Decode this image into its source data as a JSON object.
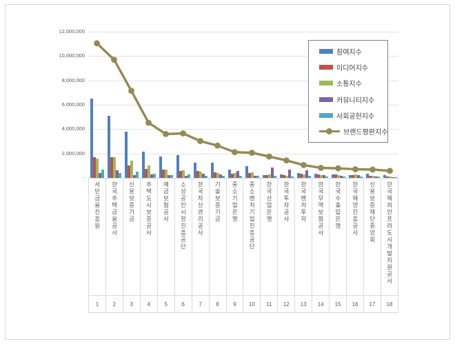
{
  "chart_data": {
    "type": "bar+line",
    "title": "",
    "legend_position": "inside-top-right",
    "grid": true,
    "categories": [
      {
        "rank": "1",
        "name": "서민금융진흥원"
      },
      {
        "rank": "2",
        "name": "한국주택금융공사"
      },
      {
        "rank": "3",
        "name": "신용보증기금"
      },
      {
        "rank": "4",
        "name": "주택도시보증공사"
      },
      {
        "rank": "5",
        "name": "예금보험공사"
      },
      {
        "rank": "6",
        "name": "소상공인시장진흥공단"
      },
      {
        "rank": "7",
        "name": "한국자산관리공사"
      },
      {
        "rank": "8",
        "name": "기술보증기금"
      },
      {
        "rank": "9",
        "name": "중소기업은행"
      },
      {
        "rank": "10",
        "name": "중소벤처기업진흥공단"
      },
      {
        "rank": "11",
        "name": "한국산업은행"
      },
      {
        "rank": "12",
        "name": "한국투자공사"
      },
      {
        "rank": "13",
        "name": "한국벤처투자"
      },
      {
        "rank": "14",
        "name": "한국무역보험공사"
      },
      {
        "rank": "15",
        "name": "한국수출입은행"
      },
      {
        "rank": "16",
        "name": "한국해양진흥공사"
      },
      {
        "rank": "17",
        "name": "신용보증재단중앙회"
      },
      {
        "rank": "18",
        "name": "한국해외인프라도시개발지원공사"
      }
    ],
    "series": [
      {
        "name": "참여지수",
        "type": "bar",
        "color": "#4F81BD",
        "values": [
          6500000,
          5100000,
          3800000,
          2150000,
          1780000,
          1870000,
          1260000,
          1240000,
          670000,
          950000,
          250000,
          290000,
          380000,
          320000,
          290000,
          250000,
          340000,
          200000
        ]
      },
      {
        "name": "미디어지수",
        "type": "bar",
        "color": "#C0504D",
        "values": [
          1710000,
          1680000,
          1010000,
          760000,
          700000,
          570000,
          570000,
          440000,
          340000,
          380000,
          250000,
          250000,
          340000,
          270000,
          290000,
          210000,
          150000,
          120000
        ]
      },
      {
        "name": "소통지수",
        "type": "bar",
        "color": "#9BBB59",
        "values": [
          1580000,
          1680000,
          1430000,
          1010000,
          700000,
          630000,
          530000,
          400000,
          380000,
          440000,
          300000,
          190000,
          300000,
          210000,
          250000,
          290000,
          150000,
          100000
        ]
      },
      {
        "name": "커뮤니티지수",
        "type": "bar",
        "color": "#8064A2",
        "values": [
          380000,
          630000,
          250000,
          290000,
          210000,
          150000,
          340000,
          290000,
          570000,
          190000,
          860000,
          670000,
          610000,
          210000,
          150000,
          250000,
          110000,
          80000
        ]
      },
      {
        "name": "사회공헌지수",
        "type": "bar",
        "color": "#4BACC6",
        "values": [
          670000,
          380000,
          530000,
          340000,
          210000,
          290000,
          190000,
          150000,
          150000,
          190000,
          190000,
          100000,
          150000,
          110000,
          110000,
          100000,
          100000,
          60000
        ]
      },
      {
        "name": "브랜드평판지수",
        "type": "line",
        "color": "#948A54",
        "values": [
          11050000,
          9700000,
          7150000,
          4520000,
          3600000,
          3650000,
          3020000,
          2650000,
          2110000,
          2060000,
          1750000,
          1430000,
          1050000,
          820000,
          780000,
          710000,
          680000,
          580000
        ]
      }
    ],
    "yaxis": {
      "min": 0,
      "max": 12000000,
      "ticks": [
        {
          "value": 12000000,
          "label": "12,000,000"
        },
        {
          "value": 10000000,
          "label": "10,000,000"
        },
        {
          "value": 8000000,
          "label": "8,000,000"
        },
        {
          "value": 6000000,
          "label": "6,000,000"
        },
        {
          "value": 4000000,
          "label": "4,000,000"
        },
        {
          "value": 2000000,
          "label": "2,000,000"
        },
        {
          "value": 0,
          "label": "-"
        }
      ]
    }
  },
  "colors": {
    "gridline": "#e2e2e2",
    "axis_text": "#595959",
    "cell_border": "#d9d9d9",
    "legend_border": "#7f7f7f",
    "frame_border": "#d9d9d9"
  }
}
